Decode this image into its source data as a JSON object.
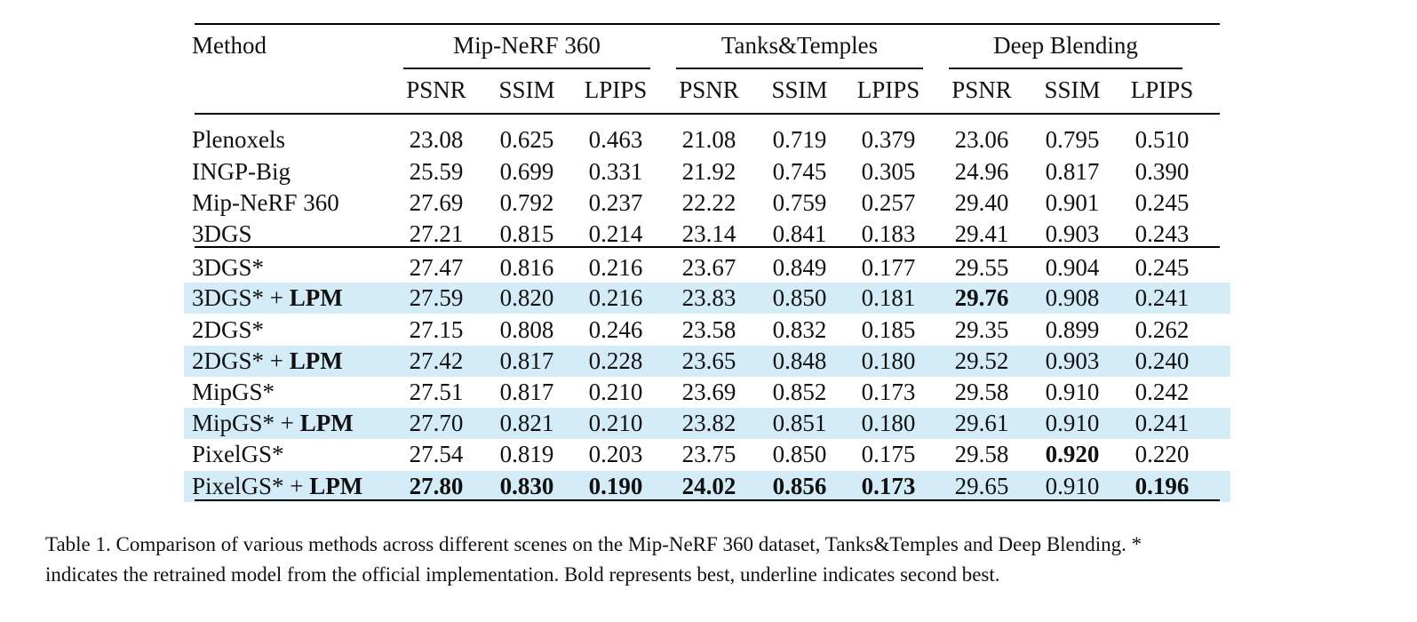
{
  "table": {
    "method_header": "Method",
    "groups": [
      "Mip-NeRF 360",
      "Tanks&Temples",
      "Deep Blending"
    ],
    "metrics": [
      "PSNR",
      "SSIM",
      "LPIPS",
      "PSNR",
      "SSIM",
      "LPIPS",
      "PSNR",
      "SSIM",
      "LPIPS"
    ],
    "rows": [
      {
        "method": "Plenoxels",
        "suffix": "",
        "highlight": false,
        "values": [
          "23.08",
          "0.625",
          "0.463",
          "21.08",
          "0.719",
          "0.379",
          "23.06",
          "0.795",
          "0.510"
        ],
        "bold": []
      },
      {
        "method": "INGP-Big",
        "suffix": "",
        "highlight": false,
        "values": [
          "25.59",
          "0.699",
          "0.331",
          "21.92",
          "0.745",
          "0.305",
          "24.96",
          "0.817",
          "0.390"
        ],
        "bold": []
      },
      {
        "method": "Mip-NeRF 360",
        "suffix": "",
        "highlight": false,
        "values": [
          "27.69",
          "0.792",
          "0.237",
          "22.22",
          "0.759",
          "0.257",
          "29.40",
          "0.901",
          "0.245"
        ],
        "bold": []
      },
      {
        "method": "3DGS",
        "suffix": "",
        "highlight": false,
        "values": [
          "27.21",
          "0.815",
          "0.214",
          "23.14",
          "0.841",
          "0.183",
          "29.41",
          "0.903",
          "0.243"
        ],
        "bold": []
      },
      {
        "method": "3DGS*",
        "suffix": "",
        "highlight": false,
        "values": [
          "27.47",
          "0.816",
          "0.216",
          "23.67",
          "0.849",
          "0.177",
          "29.55",
          "0.904",
          "0.245"
        ],
        "bold": []
      },
      {
        "method": "3DGS* + ",
        "suffix": "LPM",
        "highlight": true,
        "values": [
          "27.59",
          "0.820",
          "0.216",
          "23.83",
          "0.850",
          "0.181",
          "29.76",
          "0.908",
          "0.241"
        ],
        "bold": [
          6
        ]
      },
      {
        "method": "2DGS*",
        "suffix": "",
        "highlight": false,
        "values": [
          "27.15",
          "0.808",
          "0.246",
          "23.58",
          "0.832",
          "0.185",
          "29.35",
          "0.899",
          "0.262"
        ],
        "bold": []
      },
      {
        "method": "2DGS* + ",
        "suffix": "LPM",
        "highlight": true,
        "values": [
          "27.42",
          "0.817",
          "0.228",
          "23.65",
          "0.848",
          "0.180",
          "29.52",
          "0.903",
          "0.240"
        ],
        "bold": []
      },
      {
        "method": "MipGS*",
        "suffix": "",
        "highlight": false,
        "values": [
          "27.51",
          "0.817",
          "0.210",
          "23.69",
          "0.852",
          "0.173",
          "29.58",
          "0.910",
          "0.242"
        ],
        "bold": []
      },
      {
        "method": "MipGS* + ",
        "suffix": "LPM",
        "highlight": true,
        "values": [
          "27.70",
          "0.821",
          "0.210",
          "23.82",
          "0.851",
          "0.180",
          "29.61",
          "0.910",
          "0.241"
        ],
        "bold": []
      },
      {
        "method": "PixelGS*",
        "suffix": "",
        "highlight": false,
        "values": [
          "27.54",
          "0.819",
          "0.203",
          "23.75",
          "0.850",
          "0.175",
          "29.58",
          "0.920",
          "0.220"
        ],
        "bold": [
          7
        ]
      },
      {
        "method": "PixelGS* + ",
        "suffix": "LPM",
        "highlight": true,
        "values": [
          "27.80",
          "0.830",
          "0.190",
          "24.02",
          "0.856",
          "0.173",
          "29.65",
          "0.910",
          "0.196"
        ],
        "bold": [
          0,
          1,
          2,
          3,
          4,
          5,
          8
        ]
      }
    ],
    "highlight_color": "#d4ecf7"
  },
  "caption": {
    "line1": "Table 1.  Comparison of various methods across different scenes on the Mip-NeRF 360 dataset, Tanks&Temples and Deep Blending.  *",
    "line2": "indicates the retrained model from the official implementation. Bold represents best, underline indicates second best."
  }
}
